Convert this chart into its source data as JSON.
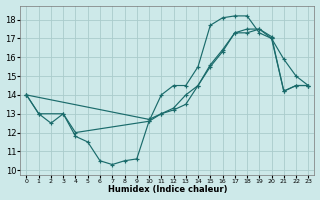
{
  "xlabel": "Humidex (Indice chaleur)",
  "bg_color": "#cde9e9",
  "grid_color": "#aacccc",
  "line_color": "#1a6b6b",
  "xlim": [
    -0.5,
    23.5
  ],
  "ylim": [
    9.75,
    18.75
  ],
  "xticks": [
    0,
    1,
    2,
    3,
    4,
    5,
    6,
    7,
    8,
    9,
    10,
    11,
    12,
    13,
    14,
    15,
    16,
    17,
    18,
    19,
    20,
    21,
    22,
    23
  ],
  "yticks": [
    10,
    11,
    12,
    13,
    14,
    15,
    16,
    17,
    18
  ],
  "series": [
    {
      "x": [
        0,
        1,
        2,
        3,
        4,
        5,
        6,
        7,
        8,
        9,
        10,
        11,
        12,
        13,
        14,
        15,
        16,
        17,
        18,
        19,
        20,
        21,
        22,
        23
      ],
      "y": [
        14,
        13,
        12.5,
        13,
        11.8,
        11.5,
        10.5,
        10.3,
        10.5,
        10.6,
        12.6,
        14.0,
        14.5,
        14.5,
        15.5,
        17.7,
        18.1,
        18.2,
        18.2,
        17.3,
        17.0,
        15.9,
        15.0,
        14.5
      ]
    },
    {
      "x": [
        0,
        10,
        11,
        12,
        13,
        14,
        15,
        16,
        17,
        18,
        19,
        20,
        21,
        22,
        23
      ],
      "y": [
        14,
        12.7,
        13.0,
        13.2,
        13.5,
        14.5,
        15.5,
        16.3,
        17.3,
        17.3,
        17.5,
        17.0,
        14.2,
        14.5,
        14.5
      ]
    },
    {
      "x": [
        0,
        1,
        3,
        4,
        10,
        11,
        12,
        13,
        14,
        15,
        16,
        17,
        18,
        19,
        20,
        21,
        22,
        23
      ],
      "y": [
        14,
        13,
        13,
        12,
        12.6,
        13.0,
        13.3,
        14.0,
        14.5,
        15.6,
        16.4,
        17.3,
        17.5,
        17.5,
        17.1,
        14.2,
        14.5,
        14.5
      ]
    }
  ]
}
